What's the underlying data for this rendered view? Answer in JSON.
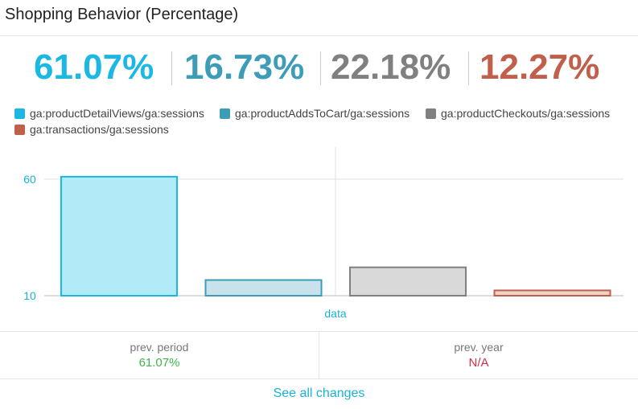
{
  "widget": {
    "title": "Shopping Behavior (Percentage)"
  },
  "kpis": [
    {
      "value": "61.07%",
      "color": "#1ab8e3"
    },
    {
      "value": "16.73%",
      "color": "#3d9db8"
    },
    {
      "value": "22.18%",
      "color": "#808080"
    },
    {
      "value": "12.27%",
      "color": "#c0604a"
    }
  ],
  "legend": [
    {
      "label": "ga:productDetailViews/ga:sessions",
      "color": "#1ab8e3"
    },
    {
      "label": "ga:productAddsToCart/ga:sessions",
      "color": "#3d9db8"
    },
    {
      "label": "ga:productCheckouts/ga:sessions",
      "color": "#808080"
    },
    {
      "label": "ga:transactions/ga:sessions",
      "color": "#c0604a"
    }
  ],
  "chart_data": {
    "type": "bar",
    "categories": [
      "data"
    ],
    "series": [
      {
        "name": "ga:productDetailViews/ga:sessions",
        "values": [
          61.07
        ],
        "fill": "#b3eaf8",
        "stroke": "#1ab8e3"
      },
      {
        "name": "ga:productAddsToCart/ga:sessions",
        "values": [
          16.73
        ],
        "fill": "#c7e2ea",
        "stroke": "#3d9db8"
      },
      {
        "name": "ga:productCheckouts/ga:sessions",
        "values": [
          22.18
        ],
        "fill": "#d9d9d9",
        "stroke": "#808080"
      },
      {
        "name": "ga:transactions/ga:sessions",
        "values": [
          12.27
        ],
        "fill": "#f0d2c9",
        "stroke": "#c0604a"
      }
    ],
    "yticks": [
      10,
      60
    ],
    "ylim": [
      10,
      60
    ],
    "xlabel": "data",
    "grid": true,
    "legend": "top-left"
  },
  "comparison": {
    "prev_period_label": "prev. period",
    "prev_period_value": "61.07%",
    "prev_period_color": "#3cb54a",
    "prev_year_label": "prev. year",
    "prev_year_value": "N/A",
    "prev_year_color": "#d0304a"
  },
  "footer": {
    "see_all": "See all changes"
  }
}
